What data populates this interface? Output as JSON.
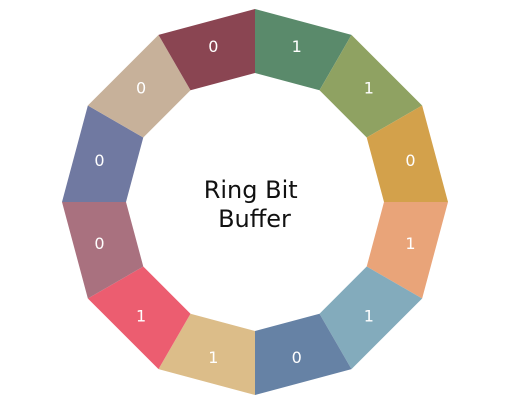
{
  "title_lines": [
    "Ring Bit",
    "Buffer"
  ],
  "segments": [
    {
      "bit": "1",
      "color": "#5a8a6b"
    },
    {
      "bit": "1",
      "color": "#8fa262"
    },
    {
      "bit": "0",
      "color": "#d3a14b"
    },
    {
      "bit": "1",
      "color": "#e9a479"
    },
    {
      "bit": "1",
      "color": "#83abbc"
    },
    {
      "bit": "0",
      "color": "#6682a5"
    },
    {
      "bit": "1",
      "color": "#dcbd89"
    },
    {
      "bit": "1",
      "color": "#ec5d70"
    },
    {
      "bit": "0",
      "color": "#a9717f"
    },
    {
      "bit": "0",
      "color": "#7079a1"
    },
    {
      "bit": "0",
      "color": "#c7b19a"
    },
    {
      "bit": "0",
      "color": "#8a4552"
    }
  ]
}
